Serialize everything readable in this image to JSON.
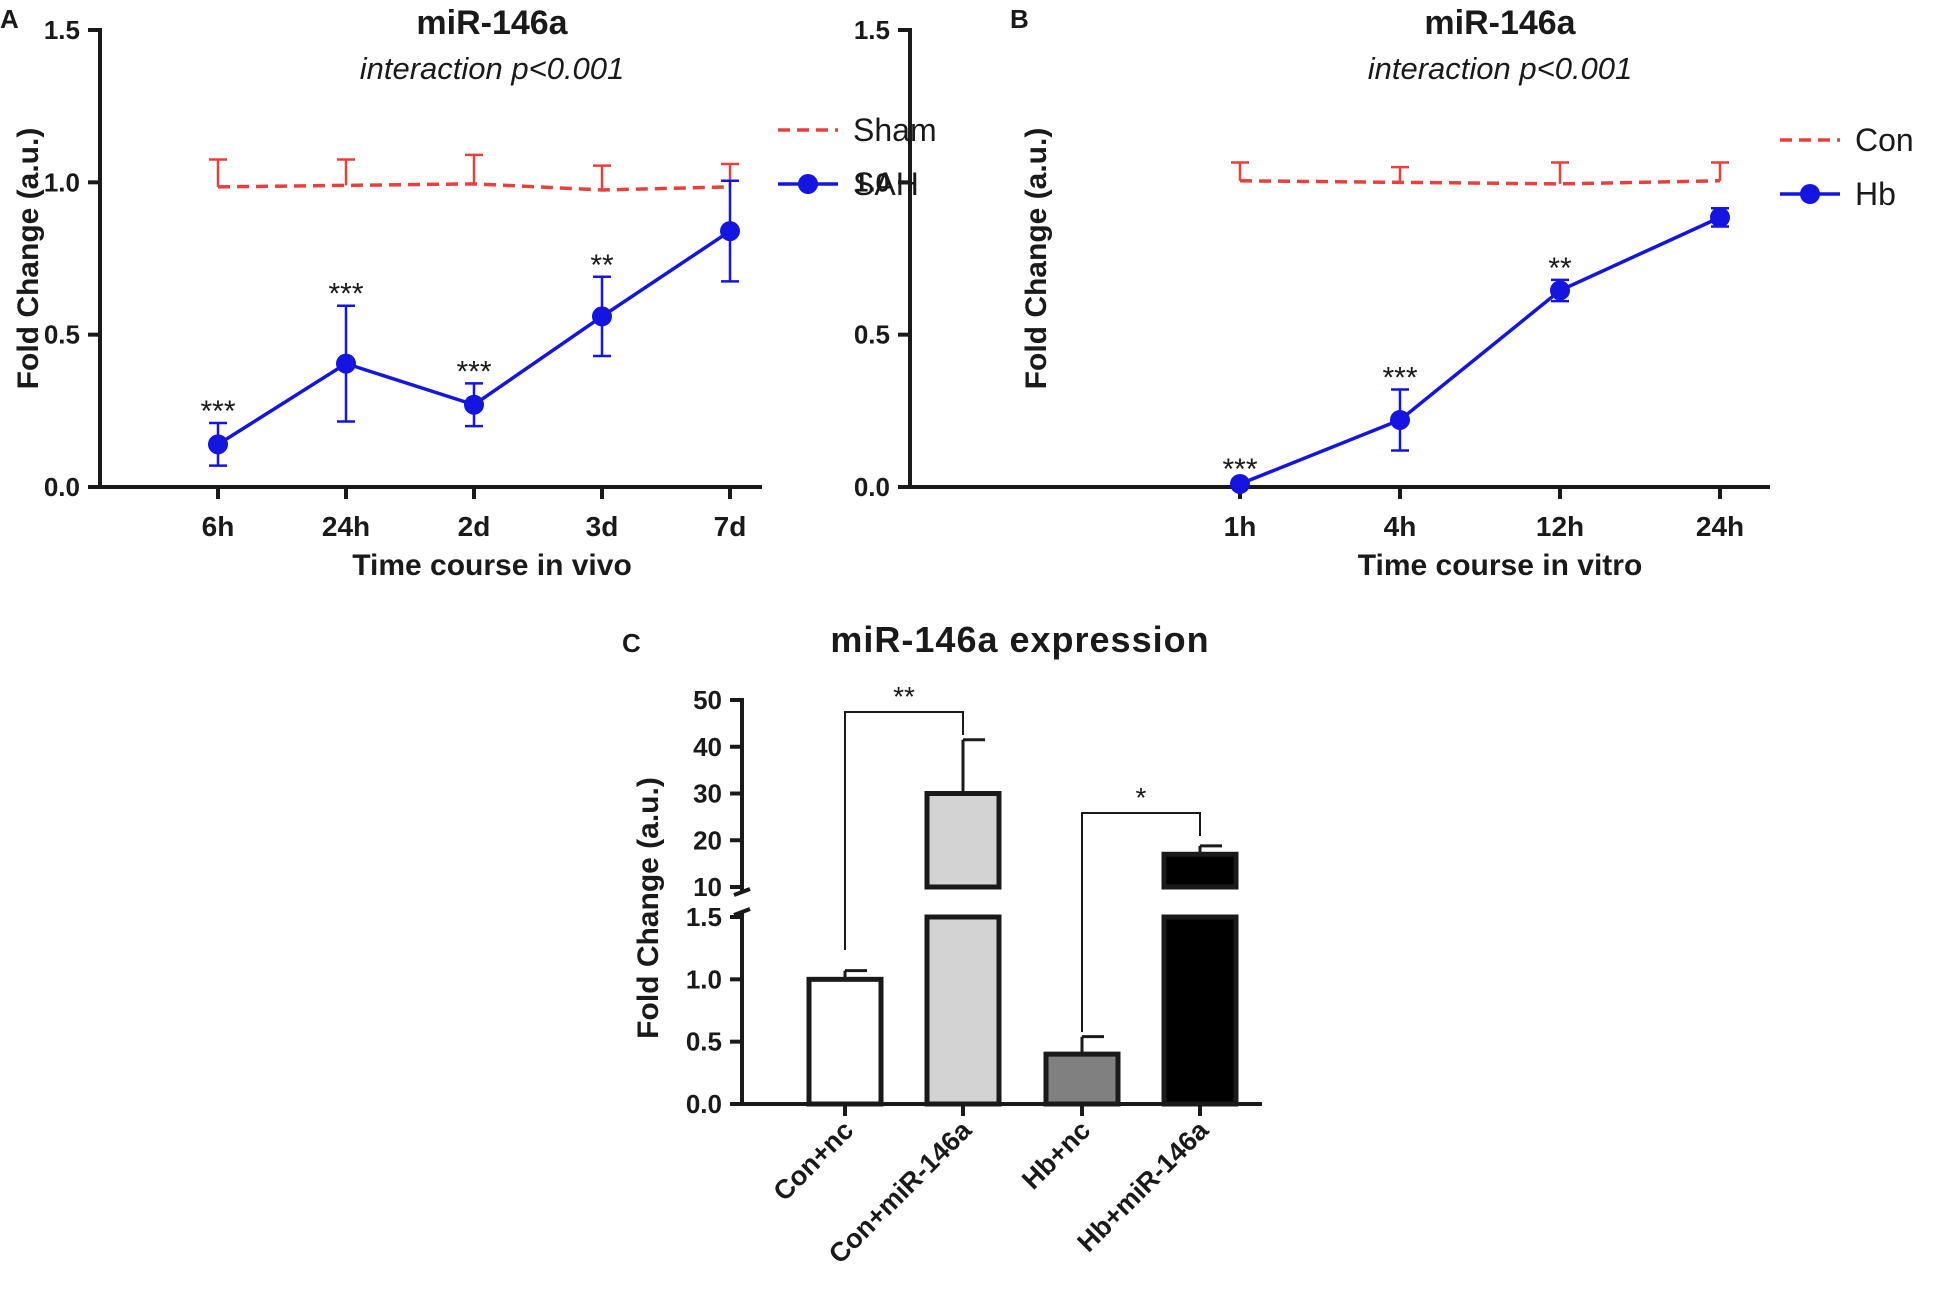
{
  "chart_data": [
    {
      "panel": "A",
      "type": "line",
      "title": "miR-146a",
      "subtitle": "interaction p<0.001",
      "xlabel": "Time course in vivo",
      "ylabel": "Fold Change (a.u.)",
      "categories": [
        "6h",
        "24h",
        "2d",
        "3d",
        "7d"
      ],
      "ylim": [
        0,
        1.5
      ],
      "yticks": [
        "0.0",
        "0.5",
        "1.0",
        "1.5"
      ],
      "legend": "top-right",
      "series": [
        {
          "name": "Sham",
          "style": "dashed",
          "color": "#e8413d",
          "values": [
            0.985,
            0.99,
            0.995,
            0.975,
            0.985
          ],
          "err": [
            0.09,
            0.085,
            0.095,
            0.08,
            0.075
          ]
        },
        {
          "name": "SAH",
          "style": "solid-marker",
          "color": "#1515e0",
          "values": [
            0.14,
            0.405,
            0.27,
            0.56,
            0.84
          ],
          "err": [
            0.07,
            0.19,
            0.07,
            0.13,
            0.165
          ],
          "annotations": [
            "***",
            "***",
            "***",
            "**",
            ""
          ]
        }
      ]
    },
    {
      "panel": "B",
      "type": "line",
      "title": "miR-146a",
      "subtitle": "interaction p<0.001",
      "xlabel": "Time course in vitro",
      "ylabel": "Fold Change (a.u.)",
      "categories": [
        "1h",
        "4h",
        "12h",
        "24h"
      ],
      "ylim": [
        0,
        1.5
      ],
      "yticks": [
        "0.0",
        "0.5",
        "1.0",
        "1.5"
      ],
      "legend": "top-right",
      "series": [
        {
          "name": "Con",
          "style": "dashed",
          "color": "#e8413d",
          "values": [
            1.005,
            1.0,
            0.995,
            1.005
          ],
          "err": [
            0.06,
            0.05,
            0.07,
            0.06
          ]
        },
        {
          "name": "Hb",
          "style": "solid-marker",
          "color": "#1515e0",
          "values": [
            0.01,
            0.22,
            0.645,
            0.885
          ],
          "err": [
            0.01,
            0.1,
            0.035,
            0.03
          ],
          "annotations": [
            "***",
            "***",
            "**",
            ""
          ]
        }
      ]
    },
    {
      "panel": "C",
      "type": "bar",
      "title": "miR-146a expression",
      "xlabel": "",
      "ylabel": "Fold Change (a.u.)",
      "categories": [
        "Con+nc",
        "Con+miR-146a",
        "Hb+nc",
        "Hb+miR-146a"
      ],
      "values": [
        1.0,
        30,
        0.4,
        17
      ],
      "err": [
        0.07,
        11.5,
        0.14,
        1.8
      ],
      "bar_colors": [
        "#ffffff",
        "#d3d3d3",
        "#808080",
        "#000000"
      ],
      "y_break": {
        "lower_range": [
          0,
          1.5
        ],
        "upper_range": [
          10,
          50
        ]
      },
      "yticks_lower": [
        "0.0",
        "0.5",
        "1.0",
        "1.5"
      ],
      "yticks_upper": [
        "10",
        "20",
        "30",
        "40",
        "50"
      ],
      "significance": [
        {
          "from": "Con+nc",
          "to": "Con+miR-146a",
          "label": "**"
        },
        {
          "from": "Hb+nc",
          "to": "Hb+miR-146a",
          "label": "*"
        }
      ]
    }
  ]
}
